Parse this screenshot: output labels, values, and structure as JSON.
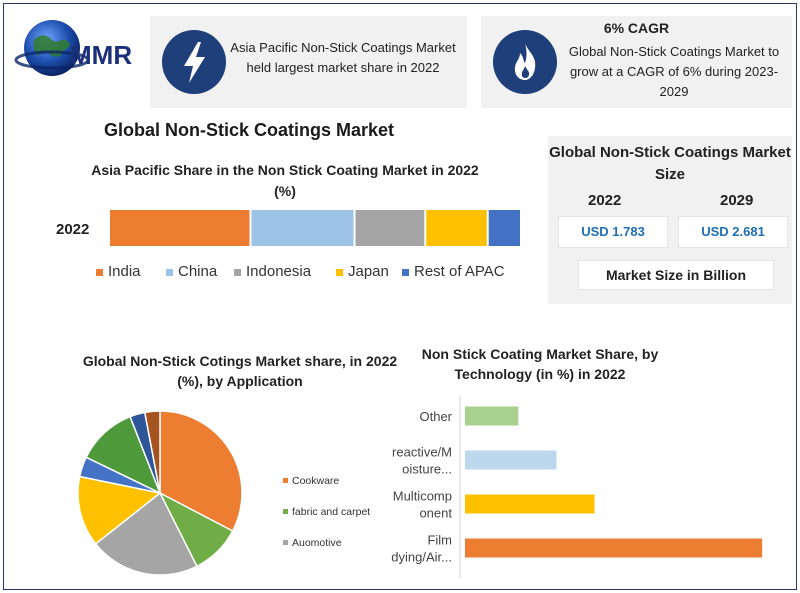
{
  "logo": {
    "text": "MMR",
    "icon": "globe-icon"
  },
  "info_left": {
    "icon": "lightning-icon",
    "text": "Asia Pacific Non-Stick Coatings Market held largest market share in 2022"
  },
  "info_right": {
    "icon": "flame-icon",
    "title": "6% CAGR",
    "text": "Global Non-Stick Coatings Market to grow at a CAGR of 6% during 2023-2029"
  },
  "main_title": "Global Non-Stick Coatings Market",
  "market_size": {
    "title": "Global Non-Stick Coatings Market Size",
    "year_a": "2022",
    "year_b": "2029",
    "value_a": "USD 1.783",
    "value_b": "USD 2.681",
    "footer": "Market Size in Billion"
  },
  "chart_data": [
    {
      "type": "bar",
      "orientation": "horizontal-stacked",
      "title": "Asia Pacific Share in the Non Stick Coating Market in 2022 (%)",
      "categories": [
        "2022"
      ],
      "series": [
        {
          "name": "India",
          "values": [
            34
          ],
          "color": "#ed7d31"
        },
        {
          "name": "China",
          "values": [
            25
          ],
          "color": "#9dc3e6"
        },
        {
          "name": "Indonesia",
          "values": [
            17
          ],
          "color": "#a5a5a5"
        },
        {
          "name": "Japan",
          "values": [
            15
          ],
          "color": "#ffc000"
        },
        {
          "name": "Rest of APAC",
          "values": [
            8
          ],
          "color": "#4472c4"
        }
      ],
      "xlim": [
        0,
        99
      ],
      "legend": "bottom",
      "grid": false
    },
    {
      "type": "pie",
      "title": "Global Non-Stick Cotings Market share, in 2022 (%), by Application",
      "slices": [
        {
          "label": "Cookware",
          "value": 33,
          "color": "#ed7d31"
        },
        {
          "label": "",
          "value": 10,
          "color": "#70ad47"
        },
        {
          "label": "",
          "value": 22,
          "color": "#a5a5a5"
        },
        {
          "label": "",
          "value": 14,
          "color": "#ffc000"
        },
        {
          "label": "",
          "value": 4,
          "color": "#4472c4"
        },
        {
          "label": "",
          "value": 12,
          "color": "#4e9a3a"
        },
        {
          "label": "",
          "value": 3,
          "color": "#2e5597"
        },
        {
          "label": "",
          "value": 3,
          "color": "#a5541f"
        }
      ],
      "legend": [
        "Cookware",
        "fabric and carpet",
        "Auomotive"
      ],
      "legend_colors": [
        "#ed7d31",
        "#70ad47",
        "#a5a5a5"
      ],
      "legend_placement": "right"
    },
    {
      "type": "bar",
      "orientation": "horizontal",
      "title": "Non Stick Coating Market Share, by Technology (in %) in 2022",
      "categories": [
        "Other",
        "reactive/M oisture...",
        "Multicomp onent",
        "Film dying/Air..."
      ],
      "category_lines": [
        [
          "Other"
        ],
        [
          "reactive/M",
          "oisture..."
        ],
        [
          "Multicomp",
          "onent"
        ],
        [
          "Film",
          "dying/Air..."
        ]
      ],
      "values": [
        7,
        12,
        17,
        39
      ],
      "colors": [
        "#a9d18e",
        "#bdd7ee",
        "#ffc000",
        "#ed7d31"
      ],
      "xlim": [
        0,
        42
      ],
      "grid": false
    }
  ]
}
